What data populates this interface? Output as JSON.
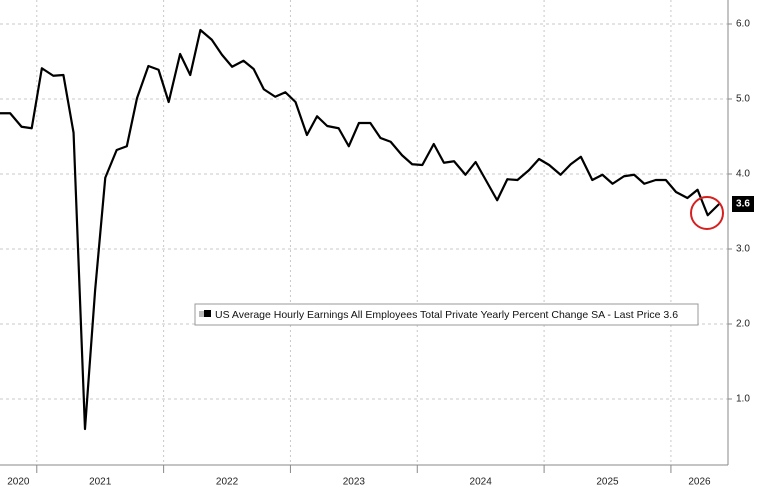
{
  "chart_data": {
    "type": "line",
    "series": [
      {
        "name": "US Average Hourly Earnings All Employees Total Private Yearly Percent Change SA - Last Price 3.6",
        "color": "#000000",
        "values": [
          4.81,
          4.81,
          4.63,
          4.61,
          5.41,
          5.31,
          5.32,
          4.55,
          0.6,
          2.45,
          3.95,
          4.32,
          4.37,
          5.01,
          5.44,
          5.39,
          4.96,
          5.6,
          5.32,
          5.92,
          5.79,
          5.59,
          5.43,
          5.51,
          5.4,
          5.13,
          5.03,
          5.09,
          4.96,
          4.52,
          4.77,
          4.64,
          4.61,
          4.37,
          4.68,
          4.68,
          4.48,
          4.43,
          4.25,
          4.13,
          4.12,
          4.4,
          4.15,
          4.17,
          3.99,
          4.16,
          3.92,
          3.65,
          3.93,
          3.92,
          4.05,
          4.2,
          4.12,
          3.99,
          4.13,
          4.23,
          3.92,
          3.99,
          3.87,
          3.97,
          3.99,
          3.87,
          3.92,
          3.92,
          3.76,
          3.68,
          3.79,
          3.45,
          3.6
        ]
      }
    ],
    "x": [
      2020.71,
      2020.79,
      2020.88,
      2020.96,
      2021.04,
      2021.13,
      2021.21,
      2021.29,
      2021.38,
      2021.46,
      2021.54,
      2021.63,
      2021.71,
      2021.79,
      2021.88,
      2021.96,
      2022.04,
      2022.13,
      2022.21,
      2022.29,
      2022.38,
      2022.46,
      2022.54,
      2022.63,
      2022.71,
      2022.79,
      2022.88,
      2022.96,
      2023.04,
      2023.13,
      2023.21,
      2023.29,
      2023.38,
      2023.46,
      2023.54,
      2023.63,
      2023.71,
      2023.79,
      2023.88,
      2023.96,
      2024.04,
      2024.13,
      2024.21,
      2024.29,
      2024.38,
      2024.46,
      2024.54,
      2024.63,
      2024.71,
      2024.79,
      2024.88,
      2024.96,
      2025.04,
      2025.13,
      2025.21,
      2025.29,
      2025.38,
      2025.46,
      2025.54,
      2025.63,
      2025.71,
      2025.79,
      2025.88,
      2025.96,
      2026.04,
      2026.13,
      2026.21,
      2026.29,
      2026.38
    ],
    "xlim": [
      2020.71,
      2026.45
    ],
    "xticks": [
      2020,
      2021,
      2022,
      2023,
      2024,
      2025,
      2026
    ],
    "ylim": [
      0.12,
      6.32
    ],
    "yticks": [
      {
        "value": 1,
        "label": "1.0"
      },
      {
        "value": 2,
        "label": "2.0"
      },
      {
        "value": 3,
        "label": "3.0"
      },
      {
        "value": 4,
        "label": "4.0"
      },
      {
        "value": 5,
        "label": "5.0"
      },
      {
        "value": 6,
        "label": "6.0"
      }
    ],
    "last_price": 3.6,
    "grid": true
  }
}
